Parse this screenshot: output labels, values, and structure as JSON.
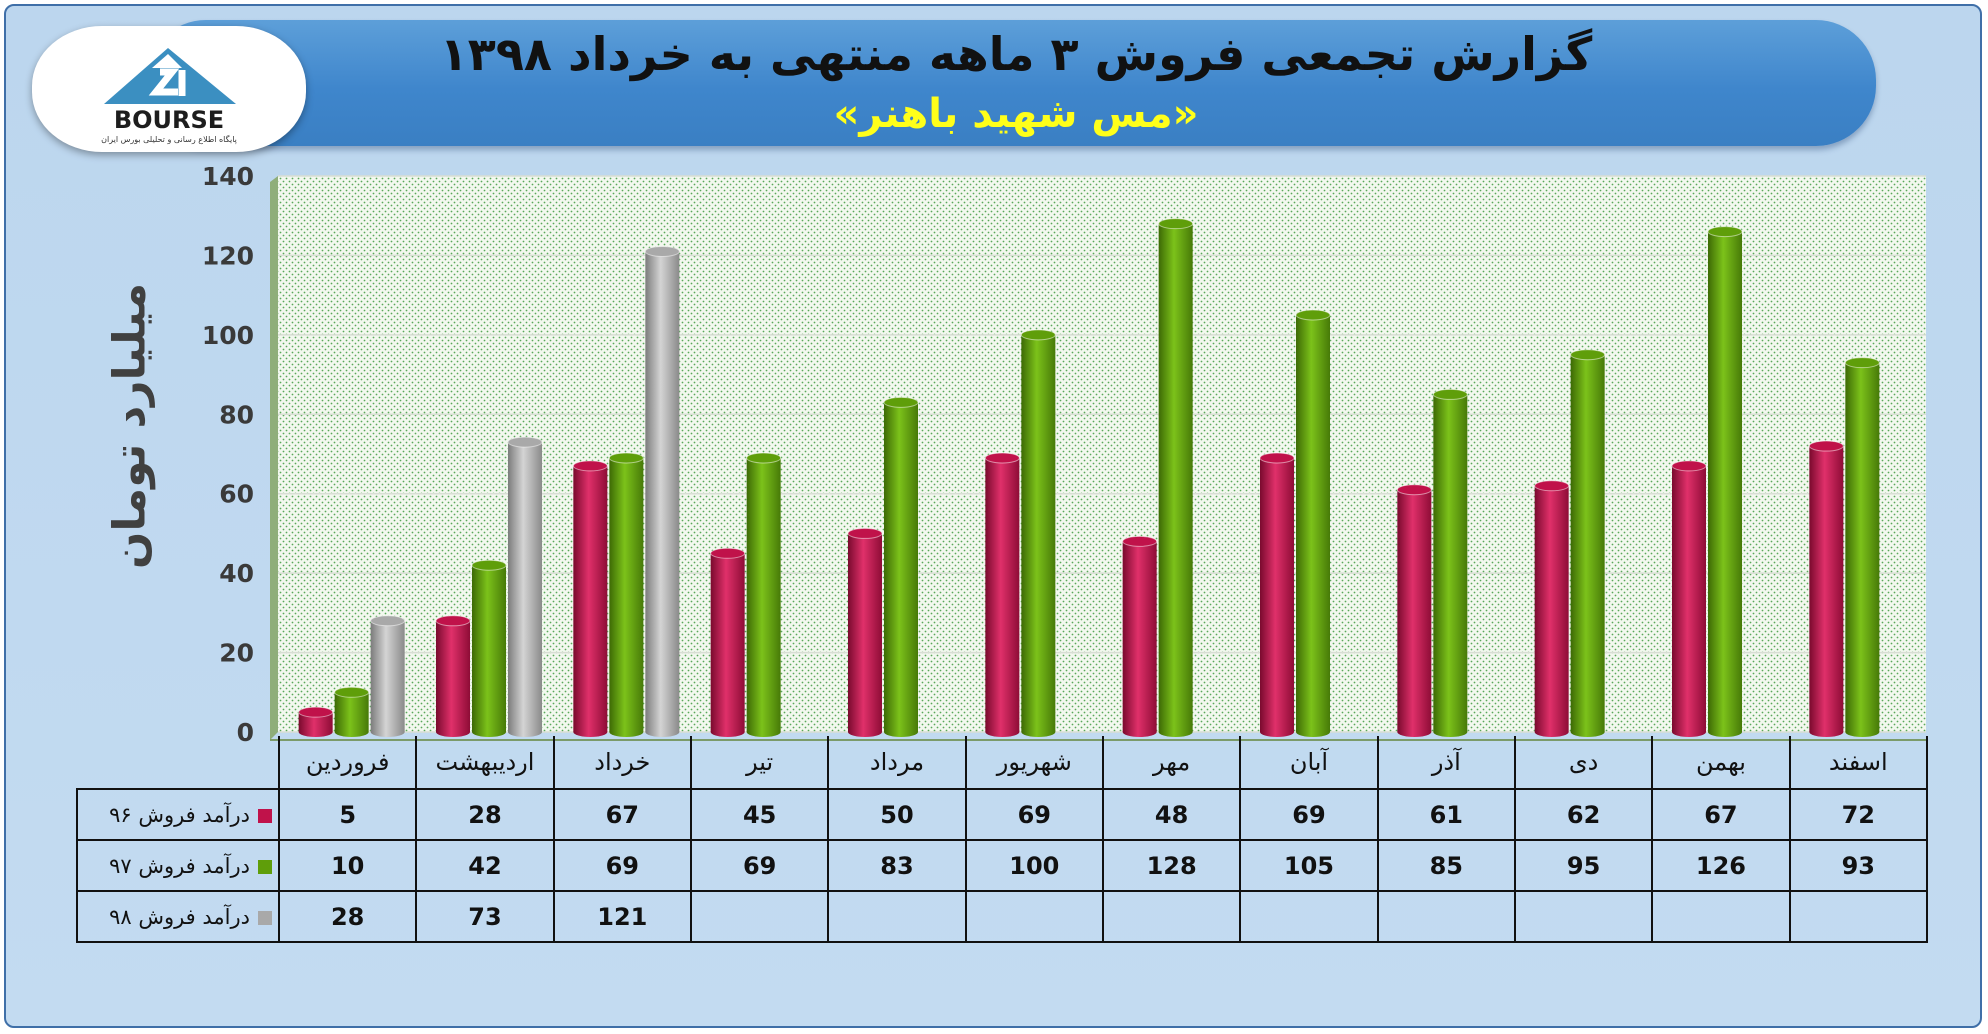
{
  "header": {
    "title": "گزارش تجمعی فروش ۳ ماهه منتهی به خرداد ۱۳۹۸",
    "subtitle": "«مس شهید باهنر»"
  },
  "logo": {
    "wordmark": "BOURSE",
    "tagline": "پایگاه اطلاع رسانی و تحلیلی بورس ایران",
    "icon": "bourse-logo-icon"
  },
  "chart_data": {
    "type": "bar",
    "title": "گزارش تجمعی فروش ۳ ماهه منتهی به خرداد ۱۳۹۸",
    "subtitle": "«مس شهید باهنر»",
    "ylabel": "میلیارد تومان",
    "xlabel": "",
    "ylim": [
      0,
      140
    ],
    "yticks": [
      0,
      20,
      40,
      60,
      80,
      100,
      120,
      140
    ],
    "grid": true,
    "legend": "data-table-below",
    "categories": [
      "فروردین",
      "اردیبهشت",
      "خرداد",
      "تیر",
      "مرداد",
      "شهریور",
      "مهر",
      "آبان",
      "آذر",
      "دی",
      "بهمن",
      "اسفند"
    ],
    "series": [
      {
        "name": "درآمد فروش ۹۶",
        "color": "#c0124a",
        "values": [
          5,
          28,
          67,
          45,
          50,
          69,
          48,
          69,
          61,
          62,
          67,
          72
        ]
      },
      {
        "name": "درآمد فروش ۹۷",
        "color": "#5f9e0a",
        "values": [
          10,
          42,
          69,
          69,
          83,
          100,
          128,
          105,
          85,
          95,
          126,
          93
        ]
      },
      {
        "name": "درآمد فروش ۹۸",
        "color": "#a9a9a9",
        "values": [
          28,
          73,
          121,
          null,
          null,
          null,
          null,
          null,
          null,
          null,
          null,
          null
        ]
      }
    ]
  }
}
